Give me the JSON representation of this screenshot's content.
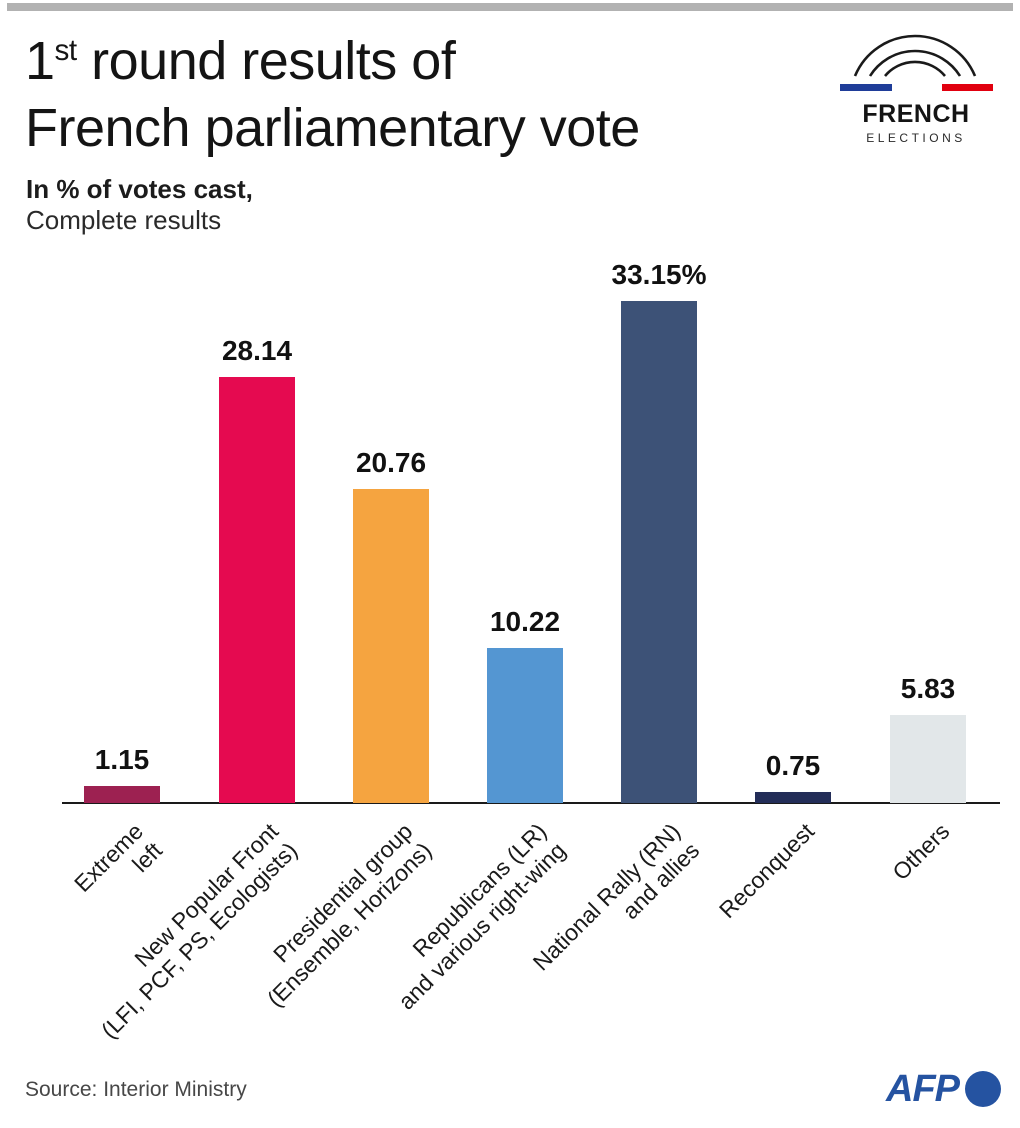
{
  "page": {
    "background": "#ffffff",
    "top_bar_color": "#b2b2b2"
  },
  "header": {
    "title_number": "1",
    "title_ordinal": "st",
    "title_rest_line1": " round results of",
    "title_line2": "French parliamentary vote",
    "subtitle_bold": "In % of votes cast,",
    "subtitle_light": "Complete results"
  },
  "election_logo": {
    "word1": "FRENCH",
    "word2": "ELECTIONS",
    "arc_color": "#1a1a1a",
    "flag_blue": "#1f3d99",
    "flag_red": "#e1000f"
  },
  "chart_data": {
    "type": "bar",
    "title": "1st round results of French parliamentary vote",
    "ylabel": "% of votes cast",
    "ylim": [
      0,
      35
    ],
    "grid": false,
    "legend": "none",
    "value_label_position": "above bars",
    "categories": [
      "Extreme left",
      "New Popular Front (LFI, PCF, PS, Ecologists)",
      "Presidential group (Ensemble, Horizons)",
      "Republicans (LR) and various right-wing",
      "National Rally (RN) and allies",
      "Reconquest",
      "Others"
    ],
    "bars": [
      {
        "label_line1": "Extreme",
        "label_line2": "left",
        "value": 1.15,
        "display": "1.15",
        "color": "#9d2151"
      },
      {
        "label_line1": "New Popular Front",
        "label_line2": "(LFI, PCF, PS, Ecologists)",
        "value": 28.14,
        "display": "28.14",
        "color": "#e50a50"
      },
      {
        "label_line1": "Presidential group",
        "label_line2": "(Ensemble, Horizons)",
        "value": 20.76,
        "display": "20.76",
        "color": "#f5a440"
      },
      {
        "label_line1": "Republicans (LR)",
        "label_line2": "and various right-wing",
        "value": 10.22,
        "display": "10.22",
        "color": "#5496d2"
      },
      {
        "label_line1": "National Rally (RN)",
        "label_line2": "and allies",
        "value": 33.15,
        "display": "33.15%",
        "color": "#3d5277"
      },
      {
        "label_line1": "Reconquest",
        "label_line2": "",
        "value": 0.75,
        "display": "0.75",
        "color": "#232d58"
      },
      {
        "label_line1": "Others",
        "label_line2": "",
        "value": 5.83,
        "display": "5.83",
        "color": "#e2e7e9"
      }
    ]
  },
  "footer": {
    "source": "Source: Interior Ministry",
    "afp_label": "AFP",
    "afp_color": "#2553a1"
  }
}
